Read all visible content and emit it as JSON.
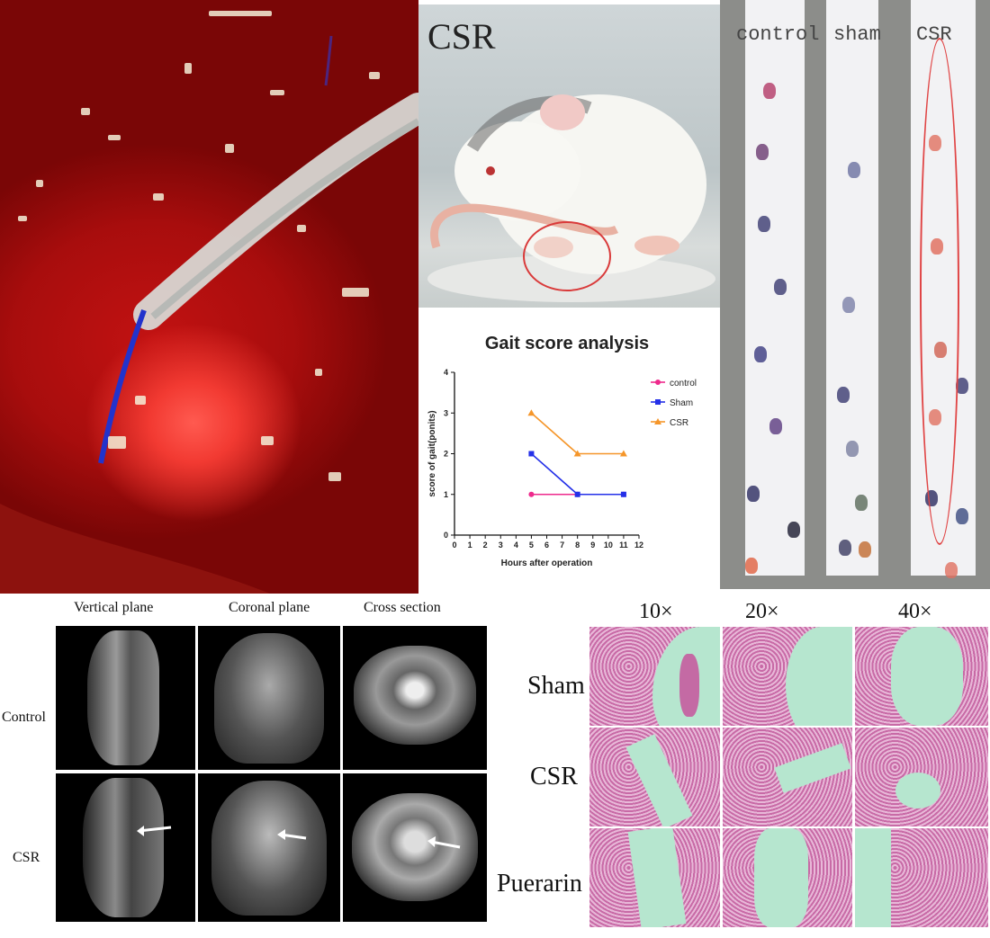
{
  "panel_b": {
    "title": "CSR"
  },
  "panel_d": {
    "strip_labels": [
      "control",
      "sham",
      "CSR"
    ]
  },
  "panel_e": {
    "columns": [
      "Vertical plane",
      "Coronal plane",
      "Cross section"
    ],
    "rows": [
      "Control",
      "CSR"
    ]
  },
  "panel_f": {
    "columns": [
      "10×",
      "20×",
      "40×"
    ],
    "rows": [
      "Sham",
      "CSR",
      "Puerarin"
    ]
  },
  "chart_data": {
    "type": "line",
    "title": "Gait score analysis",
    "xlabel": "Hours after operation",
    "ylabel": "score of gait(ponits)",
    "xlim": [
      0,
      12
    ],
    "ylim": [
      0,
      4
    ],
    "xticks": [
      "0",
      "1",
      "2",
      "3",
      "4",
      "5",
      "6",
      "7",
      "8",
      "9",
      "10",
      "11",
      "12"
    ],
    "yticks": [
      "0",
      "1",
      "2",
      "3",
      "4"
    ],
    "legend_position": "right",
    "series": [
      {
        "name": "control",
        "color": "#ee2a8c",
        "marker": "circle",
        "x": [
          5,
          8,
          11
        ],
        "y": [
          1,
          1,
          1
        ]
      },
      {
        "name": "Sham",
        "color": "#2430e8",
        "marker": "square",
        "x": [
          5,
          8,
          11
        ],
        "y": [
          2,
          1,
          1
        ]
      },
      {
        "name": "CSR",
        "color": "#f5962a",
        "marker": "triangle",
        "x": [
          5,
          8,
          11
        ],
        "y": [
          3,
          2,
          2
        ]
      }
    ]
  }
}
